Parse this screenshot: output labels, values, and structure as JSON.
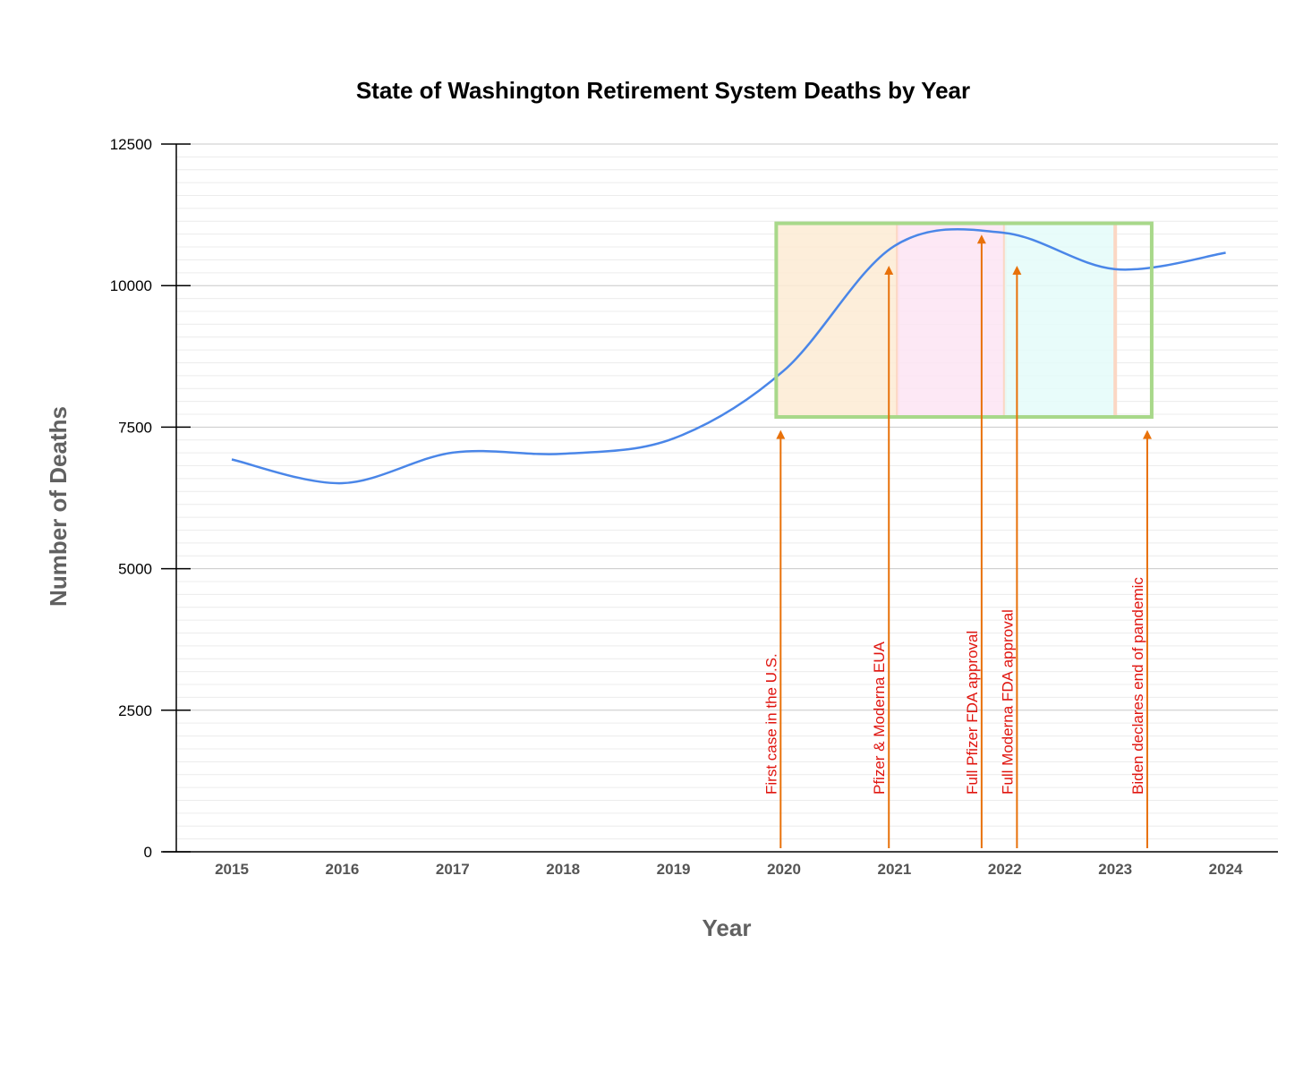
{
  "chart_data": {
    "type": "line",
    "title": "State of Washington Retirement System Deaths by Year",
    "xlabel": "Year",
    "ylabel": "Number of Deaths",
    "x": [
      2015,
      2016,
      2017,
      2018,
      2019,
      2020,
      2021,
      2022,
      2023,
      2024
    ],
    "series": [
      {
        "values": [
          6930,
          6510,
          7050,
          7030,
          7300,
          8500,
          10700,
          10930,
          10290,
          10580
        ]
      }
    ],
    "ylim": [
      0,
      12500
    ],
    "yticks": [
      0,
      2500,
      5000,
      7500,
      10000,
      12500
    ],
    "grid": true,
    "legend": "none",
    "colors": {
      "line": "#4a86e8",
      "arrow": "#e8710a",
      "annotation_text": "#e0150f",
      "highlight_box": "#a8d88a",
      "band_2020": "#fdebd3",
      "band_2021": "#fde4f3",
      "band_2022": "#e4fbf9"
    },
    "highlight_box": {
      "x_range": [
        2019.93,
        2023.33
      ],
      "y_range": [
        7680,
        11100
      ]
    },
    "bands": [
      {
        "x_range": [
          2019.93,
          2021.03
        ],
        "color_key": "band_2020"
      },
      {
        "x_range": [
          2021.03,
          2022.0
        ],
        "color_key": "band_2021"
      },
      {
        "x_range": [
          2022.0,
          2023.0
        ],
        "color_key": "band_2022"
      }
    ],
    "annotations": [
      {
        "text": "First case in the U.S.",
        "x": 2019.97,
        "arrow_top": 7450
      },
      {
        "text": "Pfizer & Moderna EUA",
        "x": 2020.95,
        "arrow_top": 10350
      },
      {
        "text": "Full Pfizer FDA approval",
        "x": 2021.79,
        "arrow_top": 10900
      },
      {
        "text": "Full Moderna FDA approval",
        "x": 2022.11,
        "arrow_top": 10350
      },
      {
        "text": "Biden declares end of pandemic",
        "x": 2023.29,
        "arrow_top": 7450
      }
    ]
  }
}
